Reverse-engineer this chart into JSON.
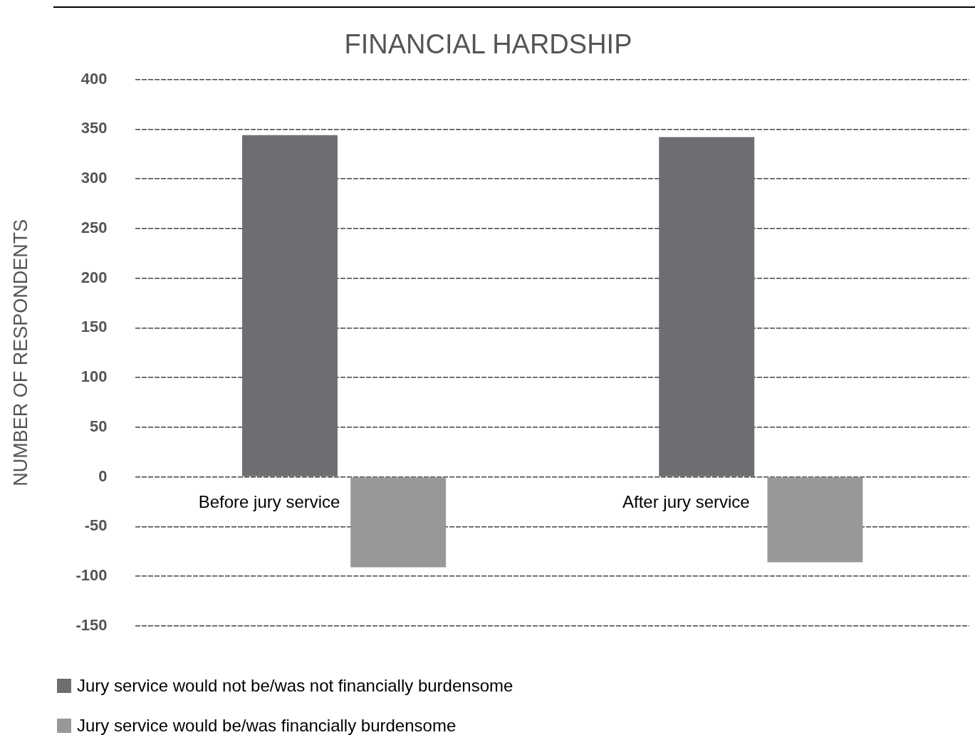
{
  "chart_data": {
    "type": "bar",
    "title": "FINANCIAL HARDSHIP",
    "ylabel": "NUMBER OF RESPONDENTS",
    "categories": [
      "Before jury service",
      "After jury service"
    ],
    "series": [
      {
        "name": "Jury service would not be/was not financially burdensome",
        "color": "#6d6e71",
        "values": [
          344,
          342
        ]
      },
      {
        "name": "Jury service would be/was financially burdensome",
        "color": "#98989b",
        "values": [
          -91,
          -86
        ]
      }
    ],
    "ylim": [
      -150,
      400
    ],
    "yticks": [
      -150,
      -100,
      -50,
      0,
      50,
      100,
      150,
      200,
      250,
      300,
      350,
      400
    ],
    "grid": "y",
    "legend": "bottom left"
  }
}
